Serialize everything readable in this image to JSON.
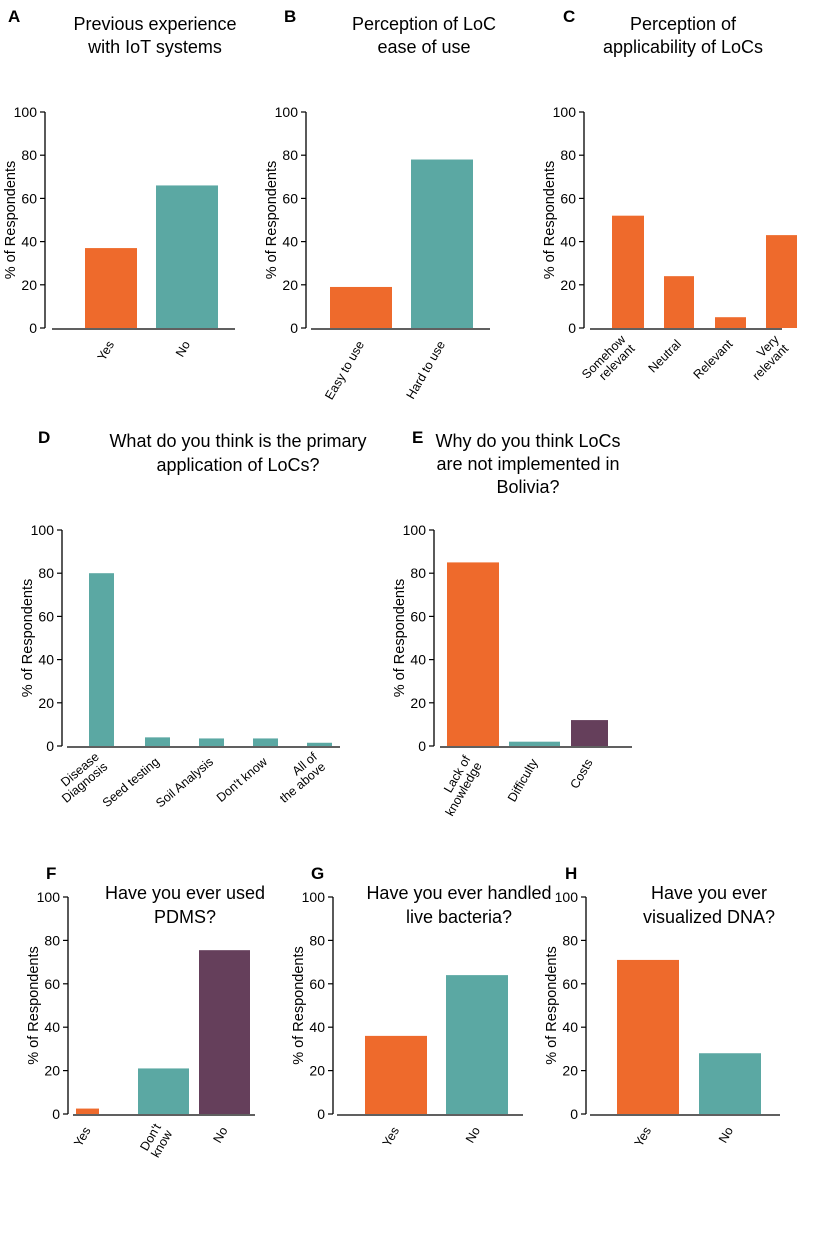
{
  "figure": {
    "panels": [
      {
        "letter": "A",
        "title_lines": [
          "Previous experience",
          "with IoT systems"
        ],
        "ylabel": "% of Respondents",
        "ticks": [
          "0",
          "20",
          "40",
          "60",
          "80",
          "100"
        ],
        "categories": [
          [
            "Yes"
          ],
          [
            "No"
          ]
        ]
      },
      {
        "letter": "B",
        "title_lines": [
          "Perception of LoC",
          "ease of use"
        ],
        "ylabel": "% of Respondents",
        "ticks": [
          "0",
          "20",
          "40",
          "60",
          "80",
          "100"
        ],
        "categories": [
          [
            "Easy to use"
          ],
          [
            "Hard to use"
          ]
        ]
      },
      {
        "letter": "C",
        "title_lines": [
          "Perception of",
          "applicability of LoCs"
        ],
        "ylabel": "% of Respondents",
        "ticks": [
          "0",
          "20",
          "40",
          "60",
          "80",
          "100"
        ],
        "categories": [
          [
            "Somehow",
            "relevant"
          ],
          [
            "Neutral"
          ],
          [
            "Relevant"
          ],
          [
            "Very",
            "relevant"
          ]
        ]
      },
      {
        "letter": "D",
        "title_lines": [
          "What do you think is the primary",
          "application of LoCs?"
        ],
        "ylabel": "% of Respondents",
        "ticks": [
          "0",
          "20",
          "40",
          "60",
          "80",
          "100"
        ],
        "categories": [
          [
            "Disease",
            "Diagnosis"
          ],
          [
            "Seed testing"
          ],
          [
            "Soil Analysis"
          ],
          [
            "Don't know"
          ],
          [
            "All of",
            "the above"
          ]
        ]
      },
      {
        "letter": "E",
        "title_lines": [
          "Why do you think LoCs",
          "are not implemented in",
          "Bolivia?"
        ],
        "ylabel": "% of Respondents",
        "ticks": [
          "0",
          "20",
          "40",
          "60",
          "80",
          "100"
        ],
        "categories": [
          [
            "Lack of",
            "knowledge"
          ],
          [
            "Difficulty"
          ],
          [
            "Costs"
          ]
        ]
      },
      {
        "letter": "F",
        "title_lines": [
          "Have you ever used",
          "PDMS?"
        ],
        "ylabel": "% of Respondents",
        "ticks": [
          "0",
          "20",
          "40",
          "60",
          "80",
          "100"
        ],
        "categories": [
          [
            "Yes"
          ],
          [
            "Don't",
            "know"
          ],
          [
            "No"
          ]
        ]
      },
      {
        "letter": "G",
        "title_lines": [
          "Have you ever handled",
          "live bacteria?"
        ],
        "ylabel": "% of Respondents",
        "ticks": [
          "0",
          "20",
          "40",
          "60",
          "80",
          "100"
        ],
        "categories": [
          [
            "Yes"
          ],
          [
            "No"
          ]
        ]
      },
      {
        "letter": "H",
        "title_lines": [
          "Have you ever",
          "visualized DNA?"
        ],
        "ylabel": "% of Respondents",
        "ticks": [
          "0",
          "20",
          "40",
          "60",
          "80",
          "100"
        ],
        "categories": [
          [
            "Yes"
          ],
          [
            "No"
          ]
        ]
      }
    ]
  },
  "colors": {
    "orange": "#EE6A2C",
    "teal": "#5BA8A3",
    "purple": "#653F5B",
    "axis": "#000000"
  },
  "chart_data": [
    {
      "type": "bar",
      "title": "Previous experience with IoT systems",
      "xlabel": "",
      "ylabel": "% of Respondents",
      "ylim": [
        0,
        100
      ],
      "grid": false,
      "categories": [
        "Yes",
        "No"
      ],
      "values": [
        37,
        66
      ],
      "bar_colors": [
        "#EE6A2C",
        "#5BA8A3"
      ]
    },
    {
      "type": "bar",
      "title": "Perception of LoC ease of use",
      "xlabel": "",
      "ylabel": "% of Respondents",
      "ylim": [
        0,
        100
      ],
      "grid": false,
      "categories": [
        "Easy to use",
        "Hard to use"
      ],
      "values": [
        19,
        78
      ],
      "bar_colors": [
        "#EE6A2C",
        "#5BA8A3"
      ]
    },
    {
      "type": "bar",
      "title": "Perception of applicability of LoCs",
      "xlabel": "",
      "ylabel": "% of Respondents",
      "ylim": [
        0,
        100
      ],
      "grid": false,
      "categories": [
        "Somehow relevant",
        "Neutral",
        "Relevant",
        "Very relevant"
      ],
      "values": [
        52,
        24,
        5,
        43
      ],
      "bar_colors": [
        "#EE6A2C",
        "#EE6A2C",
        "#EE6A2C",
        "#EE6A2C"
      ]
    },
    {
      "type": "bar",
      "title": "What do you think is the primary application of LoCs?",
      "xlabel": "",
      "ylabel": "% of Respondents",
      "ylim": [
        0,
        100
      ],
      "grid": false,
      "categories": [
        "Disease Diagnosis",
        "Seed testing",
        "Soil Analysis",
        "Don't know",
        "All of the above"
      ],
      "values": [
        80,
        4,
        3.5,
        3.5,
        1.5
      ],
      "bar_colors": [
        "#5BA8A3",
        "#5BA8A3",
        "#5BA8A3",
        "#5BA8A3",
        "#5BA8A3"
      ]
    },
    {
      "type": "bar",
      "title": "Why do you think LoCs are not implemented in Bolivia?",
      "xlabel": "",
      "ylabel": "% of Respondents",
      "ylim": [
        0,
        100
      ],
      "grid": false,
      "categories": [
        "Lack of knowledge",
        "Difficulty",
        "Costs"
      ],
      "values": [
        85,
        2,
        12
      ],
      "bar_colors": [
        "#EE6A2C",
        "#5BA8A3",
        "#653F5B"
      ]
    },
    {
      "type": "bar",
      "title": "Have you ever used PDMS?",
      "xlabel": "",
      "ylabel": "% of Respondents",
      "ylim": [
        0,
        100
      ],
      "grid": false,
      "categories": [
        "Yes",
        "Don't know",
        "No"
      ],
      "values": [
        2.5,
        21,
        75.5
      ],
      "bar_colors": [
        "#EE6A2C",
        "#5BA8A3",
        "#653F5B"
      ]
    },
    {
      "type": "bar",
      "title": "Have you ever handled live bacteria?",
      "xlabel": "",
      "ylabel": "% of Respondents",
      "ylim": [
        0,
        100
      ],
      "grid": false,
      "categories": [
        "Yes",
        "No"
      ],
      "values": [
        36,
        64
      ],
      "bar_colors": [
        "#EE6A2C",
        "#5BA8A3"
      ]
    },
    {
      "type": "bar",
      "title": "Have you ever visualized DNA?",
      "xlabel": "",
      "ylabel": "% of Respondents",
      "ylim": [
        0,
        100
      ],
      "grid": false,
      "categories": [
        "Yes",
        "No"
      ],
      "values": [
        71,
        28
      ],
      "bar_colors": [
        "#EE6A2C",
        "#5BA8A3"
      ]
    }
  ]
}
